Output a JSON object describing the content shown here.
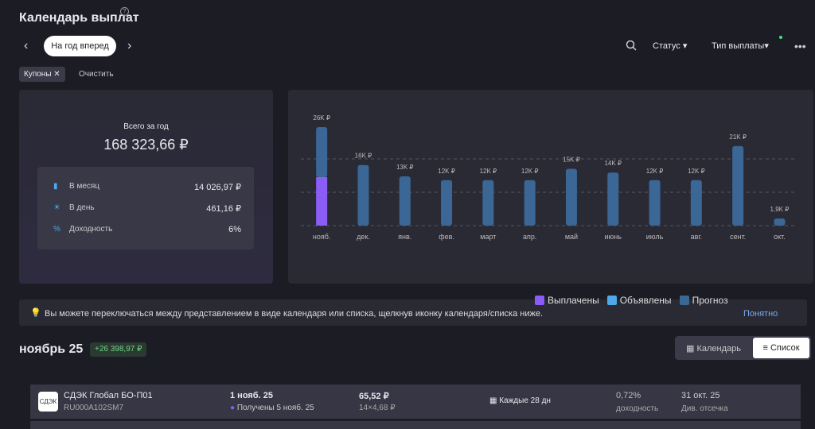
{
  "header": {
    "title": "Календарь выплат",
    "help": "?"
  },
  "toolbar": {
    "period": "На год вперед",
    "status": "Статус",
    "payment_type": "Тип выплаты"
  },
  "filters": {
    "chip": "Купоны",
    "clear": "Очистить"
  },
  "summary": {
    "title": "Всего за год",
    "total": "168 323,66 ₽",
    "rows": [
      {
        "label": "В месяц",
        "value": "14 026,97 ₽"
      },
      {
        "label": "В день",
        "value": "461,16 ₽"
      },
      {
        "label": "Доходность",
        "value": "6%"
      }
    ]
  },
  "chart_data": {
    "type": "bar",
    "stacked": true,
    "categories": [
      "нояб.",
      "дек.",
      "янв.",
      "фев.",
      "март",
      "апр.",
      "май",
      "июнь",
      "июль",
      "авг.",
      "сент.",
      "окт."
    ],
    "series": [
      {
        "name": "Выплачены",
        "color": "#8b5cf6",
        "values": [
          12800,
          null,
          null,
          null,
          null,
          null,
          null,
          null,
          null,
          null,
          null,
          null
        ]
      },
      {
        "name": "Объявлены",
        "color": "#4ea8ea",
        "values": [
          null,
          null,
          null,
          null,
          null,
          null,
          null,
          null,
          null,
          null,
          null,
          null
        ]
      },
      {
        "name": "Прогноз",
        "color": "#3a6796",
        "values": [
          13200,
          16000,
          13000,
          12000,
          12000,
          12000,
          15000,
          14000,
          12000,
          12000,
          21000,
          1900
        ]
      }
    ],
    "totals": [
      26000,
      16000,
      13000,
      12000,
      12000,
      12000,
      15000,
      14000,
      12000,
      12000,
      21000,
      1900
    ],
    "total_labels": [
      "26K ₽",
      "16K ₽",
      "13K ₽",
      "12K ₽",
      "12K ₽",
      "12K ₽",
      "15K ₽",
      "14K ₽",
      "12K ₽",
      "12K ₽",
      "21K ₽",
      "1,9K ₽"
    ],
    "ylim": [
      0,
      26000
    ],
    "yticks": [
      8800,
      17600
    ],
    "grid": true
  },
  "tip": {
    "text": "Вы можете переключаться между представлением в виде календаря или списка, щелкнув иконку календаря/списка ниже.",
    "action": "Понятно"
  },
  "month": {
    "title": "ноябрь 25",
    "amount": "+26 398,97 ₽",
    "views": [
      "Календарь",
      "Список"
    ]
  },
  "list": {
    "rows": [
      {
        "logo": "СДЭК",
        "name": "СДЭК Глобал БО-П01",
        "isin": "RU000A102SM7",
        "date": "1 нояб. 25",
        "status": "Получены 5 нояб. 25",
        "amount": "65,52 ₽",
        "detail": "14×4,68 ₽",
        "frequency": "Каждые 28 дн",
        "yield": "0,72%",
        "yield_label": "доходность",
        "record_date": "31 окт. 25",
        "record_label": "Див. отсечка"
      }
    ]
  }
}
